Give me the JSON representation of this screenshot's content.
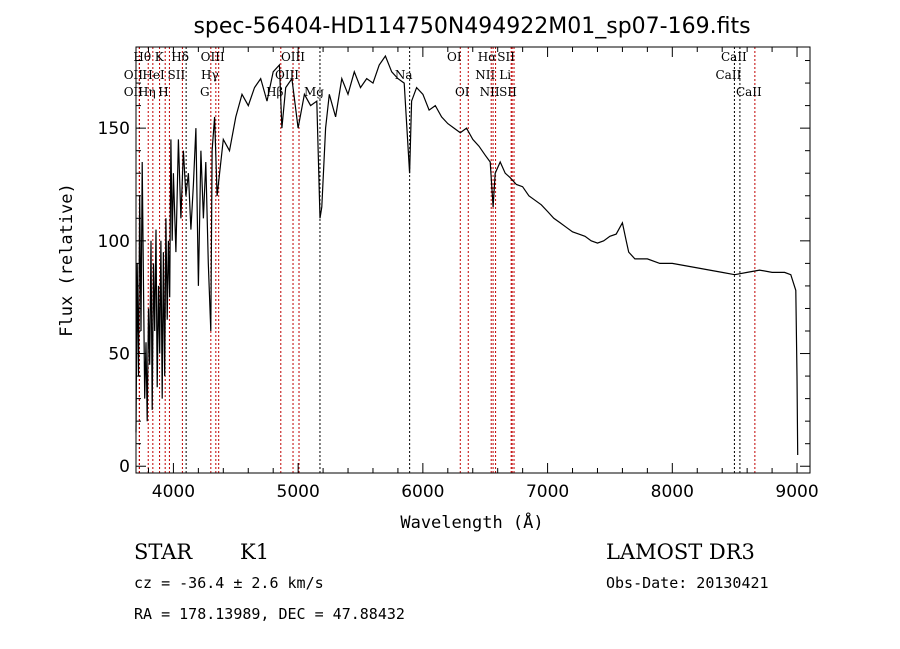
{
  "chart_data": {
    "type": "line",
    "title": "spec-56404-HD114750N494922M01_sp07-169.fits",
    "xlabel": "Wavelength (Å)",
    "ylabel": "Flux (relative)",
    "xlim": [
      3700,
      9104
    ],
    "ylim": [
      -3,
      186
    ],
    "xticks": [
      4000,
      5000,
      6000,
      7000,
      8000,
      9000
    ],
    "yticks": [
      0,
      50,
      100,
      150
    ],
    "grid": false,
    "series": [
      {
        "name": "spectrum",
        "points": [
          [
            3700,
            15
          ],
          [
            3710,
            90
          ],
          [
            3720,
            40
          ],
          [
            3730,
            120
          ],
          [
            3740,
            60
          ],
          [
            3750,
            135
          ],
          [
            3760,
            80
          ],
          [
            3770,
            30
          ],
          [
            3780,
            55
          ],
          [
            3790,
            20
          ],
          [
            3800,
            70
          ],
          [
            3810,
            45
          ],
          [
            3820,
            100
          ],
          [
            3830,
            25
          ],
          [
            3840,
            90
          ],
          [
            3850,
            60
          ],
          [
            3860,
            105
          ],
          [
            3870,
            35
          ],
          [
            3880,
            80
          ],
          [
            3890,
            50
          ],
          [
            3900,
            100
          ],
          [
            3910,
            30
          ],
          [
            3920,
            95
          ],
          [
            3930,
            40
          ],
          [
            3940,
            110
          ],
          [
            3950,
            65
          ],
          [
            3960,
            100
          ],
          [
            3970,
            75
          ],
          [
            3980,
            145
          ],
          [
            3990,
            100
          ],
          [
            4000,
            130
          ],
          [
            4020,
            95
          ],
          [
            4040,
            145
          ],
          [
            4060,
            110
          ],
          [
            4080,
            140
          ],
          [
            4100,
            120
          ],
          [
            4120,
            130
          ],
          [
            4140,
            105
          ],
          [
            4160,
            125
          ],
          [
            4180,
            150
          ],
          [
            4200,
            80
          ],
          [
            4220,
            140
          ],
          [
            4240,
            110
          ],
          [
            4260,
            135
          ],
          [
            4280,
            90
          ],
          [
            4300,
            60
          ],
          [
            4310,
            140
          ],
          [
            4330,
            155
          ],
          [
            4350,
            120
          ],
          [
            4370,
            130
          ],
          [
            4400,
            145
          ],
          [
            4450,
            140
          ],
          [
            4500,
            155
          ],
          [
            4550,
            165
          ],
          [
            4600,
            160
          ],
          [
            4650,
            168
          ],
          [
            4700,
            172
          ],
          [
            4750,
            162
          ],
          [
            4800,
            175
          ],
          [
            4850,
            178
          ],
          [
            4870,
            150
          ],
          [
            4900,
            168
          ],
          [
            4950,
            172
          ],
          [
            5000,
            150
          ],
          [
            5050,
            165
          ],
          [
            5100,
            160
          ],
          [
            5150,
            162
          ],
          [
            5175,
            110
          ],
          [
            5190,
            115
          ],
          [
            5220,
            150
          ],
          [
            5250,
            165
          ],
          [
            5300,
            155
          ],
          [
            5350,
            172
          ],
          [
            5400,
            165
          ],
          [
            5450,
            175
          ],
          [
            5500,
            168
          ],
          [
            5550,
            172
          ],
          [
            5600,
            170
          ],
          [
            5650,
            178
          ],
          [
            5700,
            182
          ],
          [
            5750,
            175
          ],
          [
            5800,
            172
          ],
          [
            5850,
            170
          ],
          [
            5894,
            130
          ],
          [
            5910,
            162
          ],
          [
            5950,
            168
          ],
          [
            6000,
            165
          ],
          [
            6050,
            158
          ],
          [
            6100,
            160
          ],
          [
            6150,
            155
          ],
          [
            6200,
            152
          ],
          [
            6250,
            150
          ],
          [
            6300,
            148
          ],
          [
            6350,
            150
          ],
          [
            6400,
            145
          ],
          [
            6450,
            142
          ],
          [
            6500,
            138
          ],
          [
            6540,
            135
          ],
          [
            6563,
            115
          ],
          [
            6580,
            130
          ],
          [
            6620,
            135
          ],
          [
            6660,
            130
          ],
          [
            6700,
            128
          ],
          [
            6750,
            125
          ],
          [
            6800,
            124
          ],
          [
            6850,
            120
          ],
          [
            6900,
            118
          ],
          [
            6950,
            116
          ],
          [
            7000,
            113
          ],
          [
            7050,
            110
          ],
          [
            7100,
            108
          ],
          [
            7150,
            106
          ],
          [
            7200,
            104
          ],
          [
            7250,
            103
          ],
          [
            7300,
            102
          ],
          [
            7350,
            100
          ],
          [
            7400,
            99
          ],
          [
            7450,
            100
          ],
          [
            7500,
            102
          ],
          [
            7550,
            103
          ],
          [
            7600,
            108
          ],
          [
            7630,
            100
          ],
          [
            7650,
            95
          ],
          [
            7700,
            92
          ],
          [
            7800,
            92
          ],
          [
            7900,
            90
          ],
          [
            8000,
            90
          ],
          [
            8100,
            89
          ],
          [
            8200,
            88
          ],
          [
            8300,
            87
          ],
          [
            8400,
            86
          ],
          [
            8500,
            85
          ],
          [
            8600,
            86
          ],
          [
            8700,
            87
          ],
          [
            8800,
            86
          ],
          [
            8900,
            86
          ],
          [
            8950,
            85
          ],
          [
            8990,
            78
          ],
          [
            9000,
            40
          ],
          [
            9005,
            5
          ]
        ]
      }
    ],
    "spectral_lines": [
      {
        "label": "OII",
        "wavelength": 3727,
        "row": 2,
        "color": "#c00000"
      },
      {
        "label": "Hθ",
        "wavelength": 3798,
        "row": 1,
        "color": "#c00000"
      },
      {
        "label": "OII",
        "wavelength": 3727,
        "row": 3,
        "color": "#c00000"
      },
      {
        "label": "Hη",
        "wavelength": 3835,
        "row": 3,
        "color": "#c00000"
      },
      {
        "label": "HeI",
        "wavelength": 3889,
        "row": 2,
        "color": "#c00000"
      },
      {
        "label": "K",
        "wavelength": 3934,
        "row": 1,
        "color": "#c00000"
      },
      {
        "label": "H",
        "wavelength": 3968,
        "row": 3,
        "color": "#c00000"
      },
      {
        "label": "SII",
        "wavelength": 4072,
        "row": 2,
        "color": "#c00000"
      },
      {
        "label": "Hδ",
        "wavelength": 4102,
        "row": 1,
        "color": "#000000"
      },
      {
        "label": "G",
        "wavelength": 4300,
        "row": 3,
        "color": "#c00000"
      },
      {
        "label": "Hγ",
        "wavelength": 4340,
        "row": 2,
        "color": "#c00000"
      },
      {
        "label": "OIII",
        "wavelength": 4363,
        "row": 1,
        "color": "#c00000"
      },
      {
        "label": "Hβ",
        "wavelength": 4861,
        "row": 3,
        "color": "#c00000"
      },
      {
        "label": "OIII",
        "wavelength": 4959,
        "row": 2,
        "color": "#c00000"
      },
      {
        "label": "OIII",
        "wavelength": 5007,
        "row": 1,
        "color": "#c00000"
      },
      {
        "label": "Mg",
        "wavelength": 5175,
        "row": 3,
        "color": "#000000"
      },
      {
        "label": "Na",
        "wavelength": 5894,
        "row": 2,
        "color": "#000000"
      },
      {
        "label": "OI",
        "wavelength": 6300,
        "row": 1,
        "color": "#c00000"
      },
      {
        "label": "OI",
        "wavelength": 6364,
        "row": 3,
        "color": "#c00000"
      },
      {
        "label": "NII",
        "wavelength": 6548,
        "row": 2,
        "color": "#c00000"
      },
      {
        "label": "Hα",
        "wavelength": 6563,
        "row": 1,
        "color": "#c00000"
      },
      {
        "label": "NII",
        "wavelength": 6583,
        "row": 3,
        "color": "#c00000"
      },
      {
        "label": "Li",
        "wavelength": 6708,
        "row": 2,
        "color": "#c00000"
      },
      {
        "label": "SII",
        "wavelength": 6716,
        "row": 1,
        "color": "#c00000"
      },
      {
        "label": "SII",
        "wavelength": 6731,
        "row": 3,
        "color": "#c00000"
      },
      {
        "label": "CaII",
        "wavelength": 8498,
        "row": 2,
        "color": "#000000"
      },
      {
        "label": "CaII",
        "wavelength": 8542,
        "row": 1,
        "color": "#000000"
      },
      {
        "label": "CaII",
        "wavelength": 8662,
        "row": 3,
        "color": "#c00000"
      }
    ]
  },
  "info": {
    "class": "STAR",
    "subclass": "K1",
    "cz": "cz = -36.4 ± 2.6 km/s",
    "radec": "RA = 178.13989, DEC =  47.88432",
    "survey": "LAMOST DR3",
    "obs_date": "Obs-Date: 20130421"
  }
}
